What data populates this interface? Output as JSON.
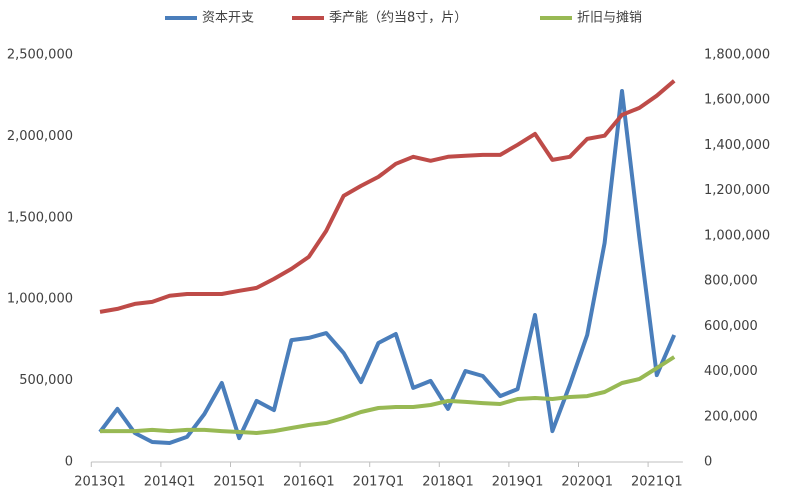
{
  "chart_data": {
    "type": "line",
    "categories": [
      "2013Q1",
      null,
      null,
      null,
      "2014Q1",
      null,
      null,
      null,
      "2015Q1",
      null,
      null,
      null,
      "2016Q1",
      null,
      null,
      null,
      "2017Q1",
      null,
      null,
      null,
      "2018Q1",
      null,
      null,
      null,
      "2019Q1",
      null,
      null,
      null,
      "2020Q1",
      null,
      null,
      null,
      "2021Q1",
      null
    ],
    "series": [
      {
        "name": "资本开支",
        "color": "#4a7ebb",
        "values": [
          184000,
          326000,
          178000,
          123000,
          117000,
          154000,
          295000,
          485000,
          147000,
          375000,
          319000,
          749000,
          762000,
          792000,
          670000,
          491000,
          731000,
          786000,
          455000,
          498000,
          326000,
          559000,
          528000,
          405000,
          448000,
          903000,
          190000,
          473000,
          780000,
          1345000,
          2279000,
          1376000,
          534000,
          780000
        ]
      },
      {
        "name": "季产能（约当8寸，片）",
        "color": "#be4b48",
        "axis": "y2",
        "values": [
          664000,
          677000,
          699000,
          708000,
          735000,
          743000,
          743000,
          743000,
          757000,
          770000,
          810000,
          854000,
          907000,
          1022000,
          1177000,
          1221000,
          1261000,
          1319000,
          1350000,
          1332000,
          1350000,
          1354000,
          1358000,
          1358000,
          1403000,
          1451000,
          1336000,
          1350000,
          1429000,
          1443000,
          1535000,
          1566000,
          1620000,
          1686000
        ]
      },
      {
        "name": "折旧与摊销",
        "color": "#98b954",
        "values": [
          190000,
          190000,
          190000,
          197000,
          190000,
          197000,
          197000,
          190000,
          184000,
          178000,
          190000,
          209000,
          227000,
          240000,
          270000,
          307000,
          332000,
          338000,
          338000,
          350000,
          375000,
          369000,
          362000,
          356000,
          387000,
          393000,
          387000,
          399000,
          405000,
          430000,
          485000,
          510000,
          577000,
          645000
        ]
      }
    ],
    "ylim": [
      0,
      2500000
    ],
    "yticks": [
      0,
      {
        "value": 500000,
        "label": "500,000"
      },
      {
        "value": 1000000,
        "label": "1,000,000"
      },
      {
        "value": 1500000,
        "label": "1,500,000"
      },
      {
        "value": 2000000,
        "label": "2,000,000"
      },
      {
        "value": 2500000,
        "label": "2,500,000"
      }
    ],
    "y2lim": [
      0,
      1800000
    ],
    "y2ticks": [
      0,
      {
        "value": 200000,
        "label": "200,000"
      },
      {
        "value": 400000,
        "label": "400,000"
      },
      {
        "value": 600000,
        "label": "600,000"
      },
      {
        "value": 800000,
        "label": "800,000"
      },
      {
        "value": 1000000,
        "label": "1,000,000"
      },
      {
        "value": 1200000,
        "label": "1,200,000"
      },
      {
        "value": 1400000,
        "label": "1,400,000"
      },
      {
        "value": 1600000,
        "label": "1,600,000"
      },
      {
        "value": 1800000,
        "label": "1,800,000"
      }
    ],
    "grid": false,
    "legend": "top"
  }
}
